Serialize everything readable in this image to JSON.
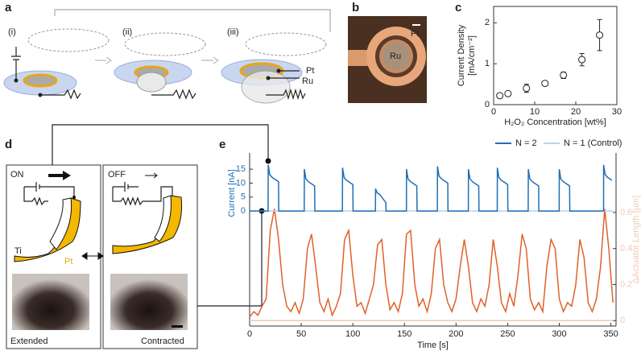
{
  "panels": {
    "a": {
      "label": "a",
      "steps": [
        "(i)",
        "(ii)",
        "(iii)"
      ],
      "labels": [
        "Pt",
        "Ru"
      ]
    },
    "b": {
      "label": "b",
      "labels": [
        "Pt",
        "Ru"
      ]
    },
    "c": {
      "label": "c"
    },
    "d": {
      "label": "d",
      "states": [
        "ON",
        "OFF"
      ],
      "labels": [
        "Ti",
        "Pt"
      ],
      "captions": [
        "Extended",
        "Contracted"
      ]
    },
    "e": {
      "label": "e"
    }
  },
  "chart_data": [
    {
      "type": "scatter",
      "x_label": "H₂O₂ Concentration [wt%]",
      "y_label": [
        "Current Density",
        "[mA/cm⁻²]"
      ],
      "x": [
        1.5,
        3.5,
        8,
        12.5,
        17,
        21.5,
        25.8
      ],
      "values": [
        0.22,
        0.27,
        0.4,
        0.52,
        0.72,
        1.1,
        1.7
      ],
      "errors": [
        0.05,
        0.05,
        0.1,
        0.05,
        0.08,
        0.15,
        0.38
      ],
      "color": "#222222",
      "xlim": [
        0,
        30
      ],
      "xticks": [
        0,
        10,
        20,
        30
      ],
      "ylim": [
        0,
        2.4
      ],
      "yticks": [
        0,
        1,
        2
      ]
    },
    {
      "type": "line",
      "x_label": "Time [s]",
      "y_label": "Current [nA]",
      "y2_label": "ΔActuator Length [µm]",
      "legend": "top-right",
      "xlim": [
        0,
        355
      ],
      "xticks": [
        0,
        50,
        100,
        150,
        200,
        250,
        300,
        350
      ],
      "ylim": [
        -41.2,
        20.8
      ],
      "yticks": [
        0,
        5,
        10,
        15
      ],
      "y2lim": [
        -0.03,
        0.93
      ],
      "y2ticks": [
        0,
        0.2,
        0.4,
        0.6
      ],
      "series": [
        {
          "name": "N = 2",
          "color": "#1f6fb5",
          "x": [
            0,
            17.9,
            18,
            19.5,
            22,
            26,
            28,
            28.2,
            52.9,
            53,
            54.5,
            57,
            61,
            63,
            63.2,
            89.9,
            90,
            91.5,
            94,
            98,
            100,
            100.2,
            121.9,
            122,
            123.5,
            126,
            130,
            132,
            132.2,
            151.9,
            152,
            153.5,
            156,
            160,
            162,
            162.2,
            181.9,
            182,
            183.5,
            186,
            190,
            192,
            192.2,
            211.9,
            212,
            213.5,
            216,
            220,
            222,
            222.2,
            239.9,
            240,
            241.5,
            244,
            248,
            250,
            250.2,
            269.9,
            270,
            271.5,
            274,
            278,
            280,
            280.2,
            299.9,
            300,
            301.5,
            304,
            308,
            310,
            310.2,
            342.9,
            343,
            344.5,
            347,
            351
          ],
          "values": [
            0,
            0,
            16.5,
            13,
            12,
            11,
            10.5,
            0,
            0,
            15,
            11.5,
            10.5,
            9.5,
            9,
            0,
            0,
            15.5,
            12,
            11,
            10,
            9.5,
            0,
            0,
            8,
            6.5,
            6,
            4,
            3,
            0,
            0,
            15,
            11.5,
            10.5,
            9.5,
            9,
            0,
            0,
            16,
            12.5,
            11.5,
            10.5,
            10,
            0,
            0,
            15,
            11.5,
            10.5,
            9.5,
            9,
            0,
            0,
            15.5,
            12,
            11,
            10,
            9.5,
            0,
            0,
            15,
            11.5,
            10.5,
            9.5,
            9,
            0,
            0,
            15,
            11.5,
            10.5,
            9.5,
            9,
            0,
            0,
            16.5,
            13,
            12,
            11
          ]
        },
        {
          "name": "N = 1 (Control)",
          "color": "#b8d4ee",
          "x": [
            0,
            352
          ],
          "values": [
            0,
            0
          ]
        },
        {
          "axis": "y2",
          "color": "#f2c9b4",
          "x": [
            0,
            352
          ],
          "values": [
            0,
            0
          ]
        },
        {
          "axis": "y2",
          "color": "#e0612a",
          "x": [
            0,
            4,
            8,
            12,
            16,
            20,
            24,
            28,
            32,
            36,
            40,
            44,
            48,
            52,
            56,
            60,
            64,
            68,
            72,
            76,
            80,
            84,
            88,
            92,
            96,
            100,
            104,
            108,
            112,
            116,
            120,
            124,
            128,
            132,
            136,
            140,
            144,
            148,
            152,
            156,
            160,
            164,
            168,
            172,
            176,
            180,
            184,
            188,
            192,
            196,
            200,
            204,
            208,
            212,
            216,
            220,
            224,
            228,
            232,
            236,
            240,
            244,
            248,
            252,
            256,
            260,
            264,
            268,
            272,
            276,
            280,
            284,
            288,
            292,
            296,
            300,
            304,
            308,
            312,
            316,
            320,
            324,
            328,
            332,
            336,
            340,
            344,
            348,
            352
          ],
          "values": [
            0.02,
            0.05,
            0.03,
            0.08,
            0.12,
            0.5,
            0.62,
            0.45,
            0.2,
            0.08,
            0.05,
            0.1,
            0.04,
            0.12,
            0.4,
            0.48,
            0.3,
            0.1,
            0.05,
            0.12,
            0.03,
            0.08,
            0.15,
            0.45,
            0.5,
            0.25,
            0.08,
            0.1,
            0.04,
            0.12,
            0.2,
            0.42,
            0.45,
            0.2,
            0.06,
            0.1,
            0.05,
            0.15,
            0.48,
            0.5,
            0.2,
            0.08,
            0.12,
            0.05,
            0.15,
            0.4,
            0.45,
            0.2,
            0.1,
            0.05,
            0.12,
            0.3,
            0.45,
            0.3,
            0.1,
            0.05,
            0.12,
            0.08,
            0.2,
            0.45,
            0.3,
            0.1,
            0.05,
            0.15,
            0.08,
            0.25,
            0.48,
            0.4,
            0.12,
            0.06,
            0.1,
            0.05,
            0.3,
            0.45,
            0.4,
            0.12,
            0.05,
            0.1,
            0.08,
            0.2,
            0.45,
            0.35,
            0.1,
            0.05,
            0.12,
            0.3,
            0.62,
            0.4,
            0.1
          ]
        }
      ]
    }
  ]
}
